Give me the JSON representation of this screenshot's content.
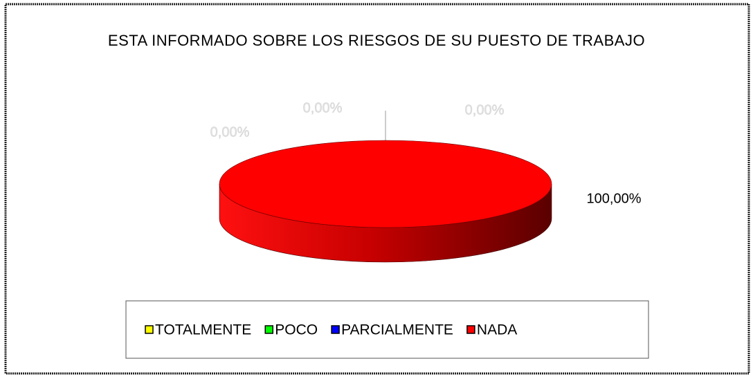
{
  "chart_data": {
    "type": "pie",
    "title": "ESTA INFORMADO SOBRE LOS RIESGOS DE SU PUESTO DE TRABAJO",
    "categories": [
      "TOTALMENTE",
      "POCO",
      "PARCIALMENTE",
      "NADA"
    ],
    "values": [
      0,
      0,
      0,
      100
    ],
    "value_labels": [
      "0,00%",
      "0,00%",
      "0,00%",
      "100,00%"
    ],
    "colors": [
      "#ffff00",
      "#00ff00",
      "#0000ff",
      "#ff0000"
    ],
    "legend": "bottom"
  }
}
